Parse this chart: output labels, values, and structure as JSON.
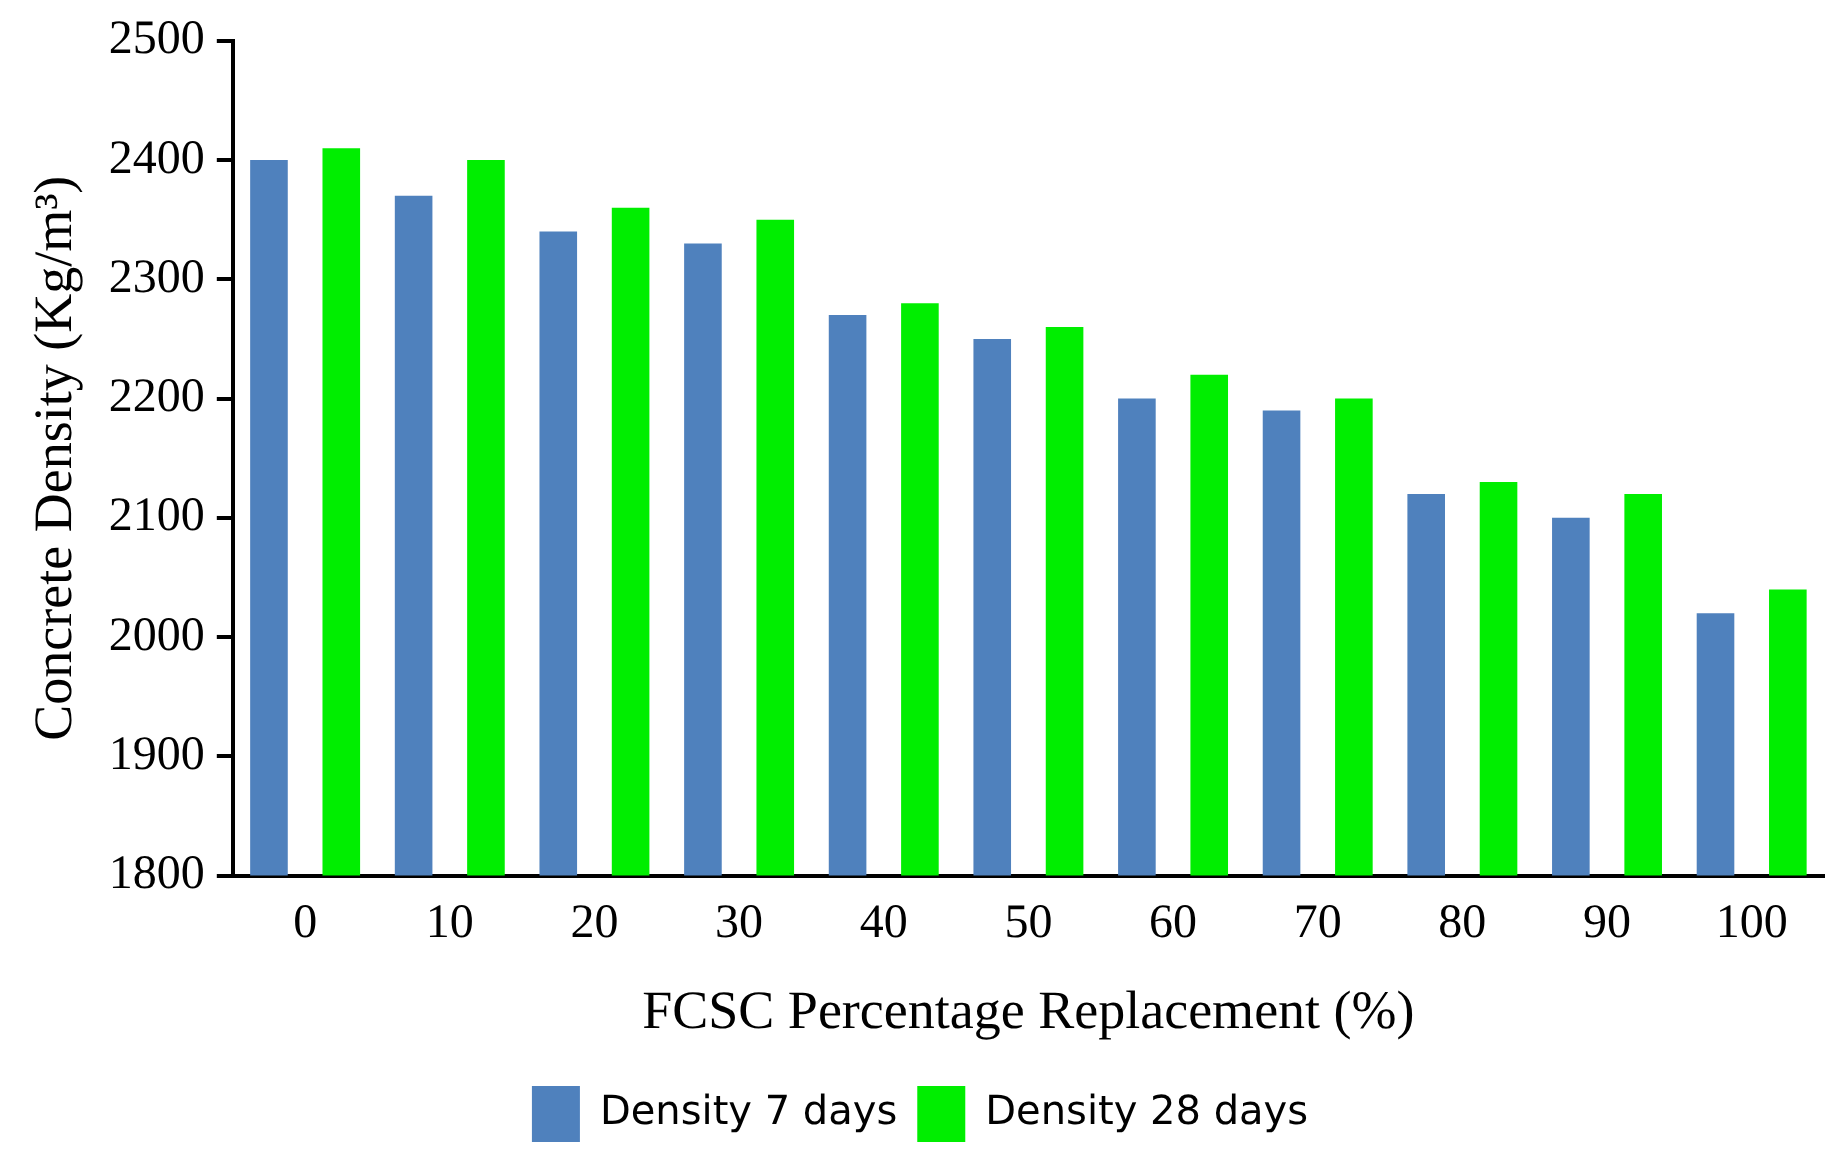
{
  "chart_data": {
    "type": "bar",
    "xlabel": "FCSC Percentage Replacement (%)",
    "ylabel": "Concrete Density (Kg/m³)",
    "categories": [
      "0",
      "10",
      "20",
      "30",
      "40",
      "50",
      "60",
      "70",
      "80",
      "90",
      "100"
    ],
    "series": [
      {
        "name": "Density 7 days",
        "color": "#4f81bd",
        "values": [
          2400,
          2370,
          2340,
          2330,
          2270,
          2250,
          2200,
          2190,
          2120,
          2100,
          2020
        ]
      },
      {
        "name": "Density 28 days",
        "color": "#00ee00",
        "values": [
          2410,
          2400,
          2360,
          2350,
          2280,
          2260,
          2220,
          2200,
          2130,
          2120,
          2040
        ]
      }
    ],
    "ylim": [
      1800,
      2500
    ],
    "yticks": [
      1800,
      1900,
      2000,
      2100,
      2200,
      2300,
      2400,
      2500
    ],
    "grid": false,
    "legend": "bottom"
  }
}
